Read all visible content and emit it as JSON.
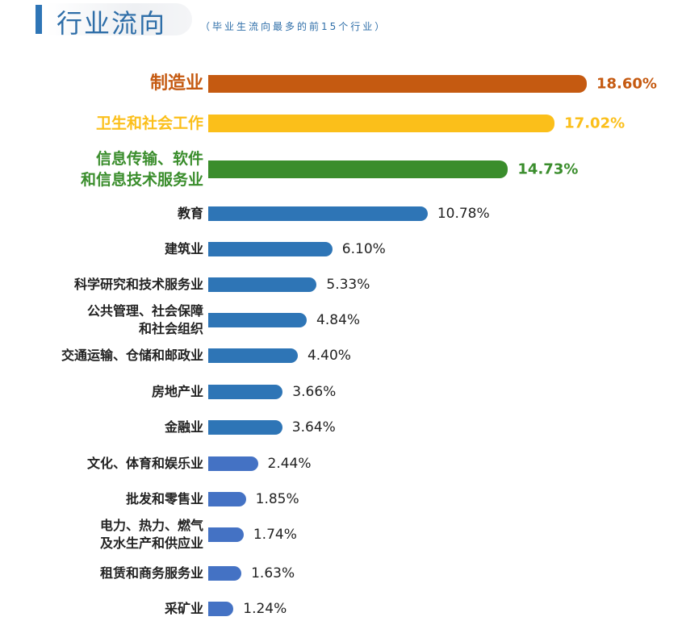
{
  "header": {
    "title": "行业流向",
    "subtitle": "（毕业生流向最多的前15个行业）"
  },
  "chart_data": {
    "type": "bar",
    "orientation": "horizontal",
    "title": "行业流向",
    "subtitle": "（毕业生流向最多的前15个行业）",
    "categories": [
      "制造业",
      "卫生和社会工作",
      "信息传输、软件\n和信息技术服务业",
      "教育",
      "建筑业",
      "科学研究和技术服务业",
      "公共管理、社会保障\n和社会组织",
      "交通运输、仓储和邮政业",
      "房地产业",
      "金融业",
      "文化、体育和娱乐业",
      "批发和零售业",
      "电力、热力、燃气\n及水生产和供应业",
      "租赁和商务服务业",
      "采矿业"
    ],
    "values": [
      18.6,
      17.02,
      14.73,
      10.78,
      6.1,
      5.33,
      4.84,
      4.4,
      3.66,
      3.64,
      2.44,
      1.85,
      1.74,
      1.63,
      1.24
    ],
    "value_labels": [
      "18.60%",
      "17.02%",
      "14.73%",
      "10.78%",
      "6.10%",
      "5.33%",
      "4.84%",
      "4.40%",
      "3.66%",
      "3.64%",
      "2.44%",
      "1.85%",
      "1.74%",
      "1.63%",
      "1.24%"
    ],
    "colors": [
      "#c55a11",
      "#fbbf1a",
      "#3a8d2c",
      "#2e75b6",
      "#2e75b6",
      "#2e75b6",
      "#2e75b6",
      "#2e75b6",
      "#2e75b6",
      "#2e75b6",
      "#4472c4",
      "#4472c4",
      "#4472c4",
      "#4472c4",
      "#4472c4"
    ],
    "grid": false
  }
}
